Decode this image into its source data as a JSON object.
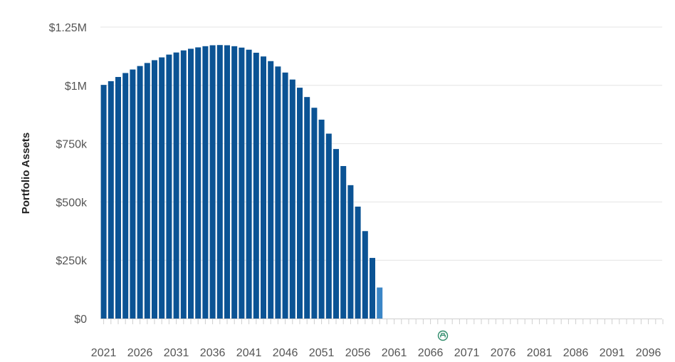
{
  "chart_data": {
    "type": "bar",
    "ylabel": "Portfolio Assets",
    "ylim": [
      0,
      1250000
    ],
    "y_ticks": [
      {
        "value": 0,
        "label": "$0"
      },
      {
        "value": 250000,
        "label": "$250k"
      },
      {
        "value": 500000,
        "label": "$500k"
      },
      {
        "value": 750000,
        "label": "$750k"
      },
      {
        "value": 1000000,
        "label": "$1M"
      },
      {
        "value": 1250000,
        "label": "$1.25M"
      }
    ],
    "x_start": 2021,
    "x_end": 2098,
    "x_tick_labels": [
      "2021",
      "2026",
      "2031",
      "2036",
      "2041",
      "2046",
      "2051",
      "2056",
      "2061",
      "2066",
      "2071",
      "2076",
      "2081",
      "2086",
      "2091",
      "2096"
    ],
    "grid": true,
    "colors": {
      "bar": "#0b5394",
      "bar_final": "#3b86c6",
      "grid": "#e4e4e4",
      "marker": "#2e8b6a"
    },
    "marker_year": 2068,
    "marker_icon": "retirement-chair-icon",
    "series": [
      {
        "x": [
          2021,
          2022,
          2023,
          2024,
          2025,
          2026,
          2027,
          2028,
          2029,
          2030,
          2031,
          2032,
          2033,
          2034,
          2035,
          2036,
          2037,
          2038,
          2039,
          2040,
          2041,
          2042,
          2043,
          2044,
          2045,
          2046,
          2047,
          2048,
          2049,
          2050,
          2051,
          2052,
          2053,
          2054,
          2055,
          2056,
          2057,
          2058,
          2059,
          2060,
          2061
        ],
        "values": [
          1002000,
          1018000,
          1036000,
          1053000,
          1068000,
          1083000,
          1096000,
          1108000,
          1120000,
          1132000,
          1141000,
          1150000,
          1157000,
          1163000,
          1168000,
          1172000,
          1173000,
          1172000,
          1168000,
          1162000,
          1153000,
          1140000,
          1124000,
          1104000,
          1081000,
          1055000,
          1025000,
          990000,
          950000,
          904000,
          853000,
          793000,
          727000,
          654000,
          572000,
          480000,
          375000,
          260000,
          133000,
          0,
          0
        ],
        "final_bar_year": 2060
      }
    ]
  }
}
